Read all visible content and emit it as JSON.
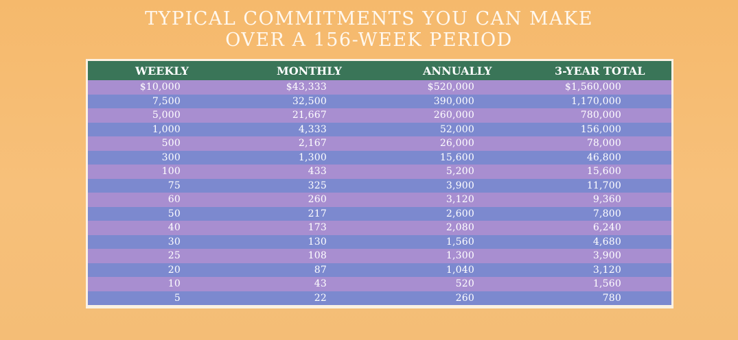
{
  "title": {
    "line1": "TYPICAL COMMITMENTS YOU CAN MAKE",
    "line2": "OVER A 156-WEEK PERIOD"
  },
  "columns": [
    "WEEKLY",
    "MONTHLY",
    "ANNUALLY",
    "3-YEAR TOTAL"
  ],
  "rows": [
    {
      "weekly": "$10,000",
      "monthly": "$43,333",
      "annually": "$520,000",
      "total": "$1,560,000"
    },
    {
      "weekly": "7,500",
      "monthly": "32,500",
      "annually": "390,000",
      "total": "1,170,000"
    },
    {
      "weekly": "5,000",
      "monthly": "21,667",
      "annually": "260,000",
      "total": "780,000"
    },
    {
      "weekly": "1,000",
      "monthly": "4,333",
      "annually": "52,000",
      "total": "156,000"
    },
    {
      "weekly": "500",
      "monthly": "2,167",
      "annually": "26,000",
      "total": "78,000"
    },
    {
      "weekly": "300",
      "monthly": "1,300",
      "annually": "15,600",
      "total": "46,800"
    },
    {
      "weekly": "100",
      "monthly": "433",
      "annually": "5,200",
      "total": "15,600"
    },
    {
      "weekly": "75",
      "monthly": "325",
      "annually": "3,900",
      "total": "11,700"
    },
    {
      "weekly": "60",
      "monthly": "260",
      "annually": "3,120",
      "total": "9,360"
    },
    {
      "weekly": "50",
      "monthly": "217",
      "annually": "2,600",
      "total": "7,800"
    },
    {
      "weekly": "40",
      "monthly": "173",
      "annually": "2,080",
      "total": "6,240"
    },
    {
      "weekly": "30",
      "monthly": "130",
      "annually": "1,560",
      "total": "4,680"
    },
    {
      "weekly": "25",
      "monthly": "108",
      "annually": "1,300",
      "total": "3,900"
    },
    {
      "weekly": "20",
      "monthly": "87",
      "annually": "1,040",
      "total": "3,120"
    },
    {
      "weekly": "10",
      "monthly": "43",
      "annually": "520",
      "total": "1,560"
    },
    {
      "weekly": "5",
      "monthly": "22",
      "annually": "260",
      "total": "780"
    }
  ],
  "colors": {
    "background": "#f5b96c",
    "header": "#3a7558",
    "row_light": "#a88ed0",
    "row_dark": "#7c89cf",
    "border": "#fbf1e3"
  }
}
